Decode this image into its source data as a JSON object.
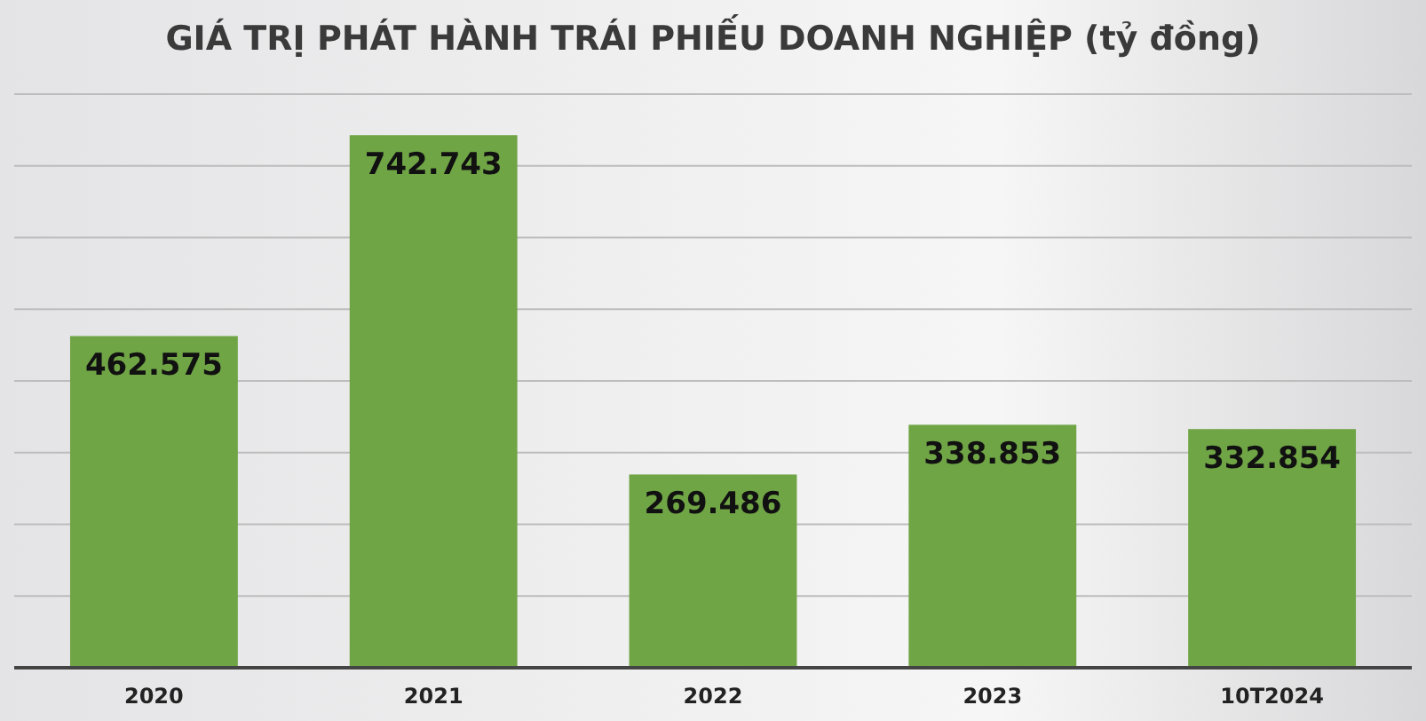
{
  "chart_data": {
    "type": "bar",
    "title": "GIÁ TRỊ PHÁT HÀNH TRÁI PHIẾU DOANH NGHIỆP (tỷ đồng)",
    "categories": [
      "2020",
      "2021",
      "2022",
      "2023",
      "10T2024"
    ],
    "values": [
      462575,
      742743,
      269486,
      338853,
      332854
    ],
    "value_labels": [
      "462.575",
      "742.743",
      "269.486",
      "338.853",
      "332.854"
    ],
    "color": "#70a546",
    "ylim": [
      0,
      800000
    ],
    "yticks": [
      {
        "value": 0,
        "label": null
      },
      {
        "value": 100000,
        "label": null
      },
      {
        "value": 200000,
        "label": null
      },
      {
        "value": 300000,
        "label": null
      },
      {
        "value": 400000,
        "label": null
      },
      {
        "value": 500000,
        "label": null
      },
      {
        "value": 600000,
        "label": null
      },
      {
        "value": 700000,
        "label": null
      },
      {
        "value": 800000,
        "label": null
      }
    ],
    "grid": "y",
    "tick_labels": "x"
  }
}
